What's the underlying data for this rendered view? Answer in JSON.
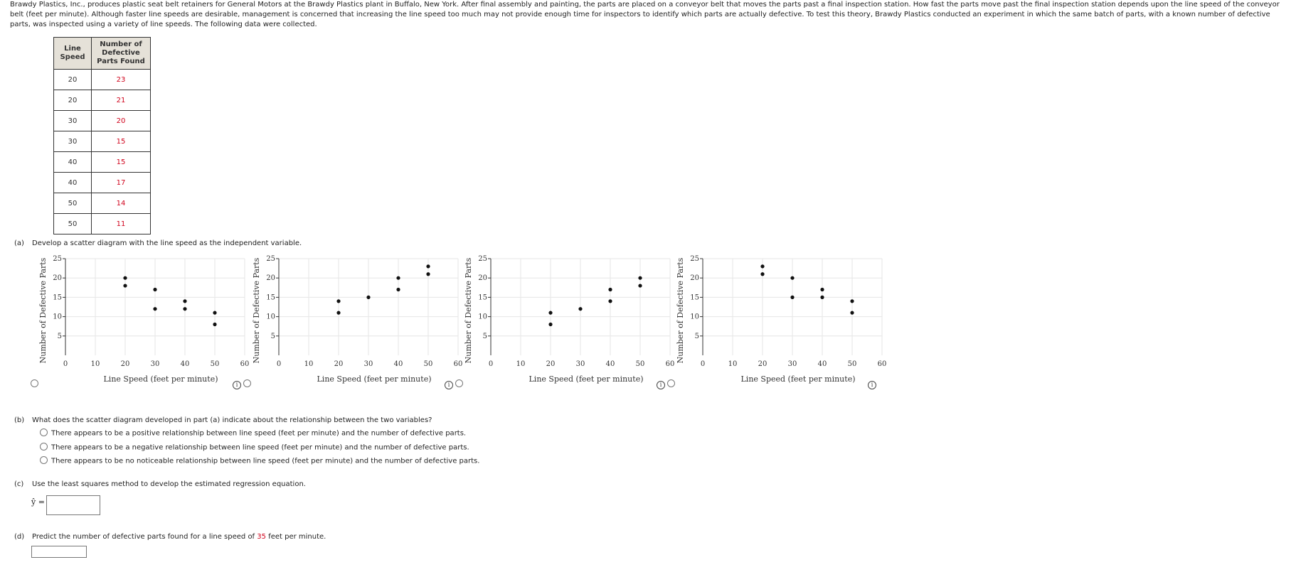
{
  "intro_text": "Brawdy Plastics, Inc., produces plastic seat belt retainers for General Motors at the Brawdy Plastics plant in Buffalo, New York. After final assembly and painting, the parts are placed on a conveyor belt that moves the parts past a final inspection station. How fast the parts move past the final inspection station depends upon the line speed of the conveyor belt (feet per minute). Although faster line speeds are desirable, management is concerned that increasing the line speed too much may not provide enough time for inspectors to identify which parts are actually defective. To test this theory, Brawdy Plastics conducted an experiment in which the same batch of parts, with a known number of defective parts, was inspected using a variety of line speeds. The following data were collected.",
  "table": {
    "header_speed": "Line Speed",
    "header_defective": "Number of Defective Parts Found",
    "rows": [
      {
        "speed": "20",
        "defective": "23"
      },
      {
        "speed": "20",
        "defective": "21"
      },
      {
        "speed": "30",
        "defective": "20"
      },
      {
        "speed": "30",
        "defective": "15"
      },
      {
        "speed": "40",
        "defective": "15"
      },
      {
        "speed": "40",
        "defective": "17"
      },
      {
        "speed": "50",
        "defective": "14"
      },
      {
        "speed": "50",
        "defective": "11"
      }
    ]
  },
  "part_a": {
    "label": "(a)",
    "text": "Develop a scatter diagram with the line speed as the independent variable."
  },
  "part_b": {
    "label": "(b)",
    "text": "What does the scatter diagram developed in part (a) indicate about the relationship between the two variables?",
    "options": [
      "There appears to be a positive relationship between line speed (feet per minute) and the number of defective parts.",
      "There appears to be a negative relationship between line speed (feet per minute) and the number of defective parts.",
      "There appears to be no noticeable relationship between line speed (feet per minute) and the number of defective parts."
    ]
  },
  "part_c": {
    "label": "(c)",
    "text": "Use the least squares method to develop the estimated regression equation.",
    "yhat_label": "ŷ =",
    "answer_value": ""
  },
  "part_d": {
    "label": "(d)",
    "text_before": "Predict the number of defective parts found for a line speed of ",
    "speed_value": "35",
    "text_after": " feet per minute.",
    "answer_value": ""
  },
  "info_glyph": "i",
  "chart_data": [
    {
      "type": "scatter",
      "xlabel": "Line Speed (feet per minute)",
      "ylabel": "Number of Defective Parts",
      "xlim": [
        0,
        60
      ],
      "ylim": [
        0,
        25
      ],
      "xticks": [
        0,
        10,
        20,
        30,
        40,
        50,
        60
      ],
      "yticks": [
        5,
        10,
        15,
        20,
        25
      ],
      "x": [
        20,
        20,
        30,
        30,
        40,
        40,
        50,
        50
      ],
      "y": [
        20,
        18,
        17,
        12,
        14,
        12,
        11,
        8
      ]
    },
    {
      "type": "scatter",
      "xlabel": "Line Speed (feet per minute)",
      "ylabel": "Number of Defective Parts",
      "xlim": [
        0,
        60
      ],
      "ylim": [
        0,
        25
      ],
      "xticks": [
        0,
        10,
        20,
        30,
        40,
        50,
        60
      ],
      "yticks": [
        5,
        10,
        15,
        20,
        25
      ],
      "x": [
        20,
        20,
        30,
        40,
        40,
        50,
        50
      ],
      "y": [
        14,
        11,
        15,
        20,
        17,
        23,
        21
      ]
    },
    {
      "type": "scatter",
      "xlabel": "Line Speed (feet per minute)",
      "ylabel": "Number of Defective Parts",
      "xlim": [
        0,
        60
      ],
      "ylim": [
        0,
        25
      ],
      "xticks": [
        0,
        10,
        20,
        30,
        40,
        50,
        60
      ],
      "yticks": [
        5,
        10,
        15,
        20,
        25
      ],
      "x": [
        20,
        20,
        30,
        40,
        40,
        50,
        50
      ],
      "y": [
        11,
        8,
        12,
        17,
        14,
        20,
        18
      ]
    },
    {
      "type": "scatter",
      "xlabel": "Line Speed (feet per minute)",
      "ylabel": "Number of Defective Parts",
      "xlim": [
        0,
        60
      ],
      "ylim": [
        0,
        25
      ],
      "xticks": [
        0,
        10,
        20,
        30,
        40,
        50,
        60
      ],
      "yticks": [
        5,
        10,
        15,
        20,
        25
      ],
      "x": [
        20,
        20,
        30,
        30,
        40,
        40,
        50,
        50
      ],
      "y": [
        23,
        21,
        20,
        15,
        17,
        15,
        14,
        11
      ]
    }
  ]
}
